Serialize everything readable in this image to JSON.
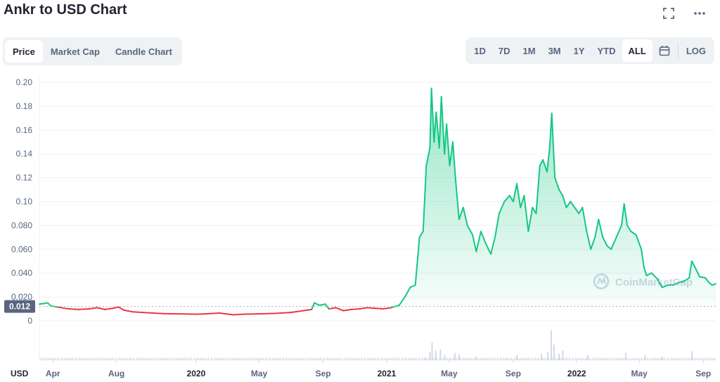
{
  "title": "Ankr to USD Chart",
  "icons": {
    "fullscreen": "fullscreen-icon",
    "more": "more-dots-icon",
    "calendar": "calendar-icon"
  },
  "tabs_left": [
    {
      "label": "Price",
      "active": true
    },
    {
      "label": "Market Cap",
      "active": false
    },
    {
      "label": "Candle Chart",
      "active": false
    }
  ],
  "tabs_right": [
    {
      "label": "1D",
      "active": false
    },
    {
      "label": "7D",
      "active": false
    },
    {
      "label": "1M",
      "active": false
    },
    {
      "label": "3M",
      "active": false
    },
    {
      "label": "1Y",
      "active": false
    },
    {
      "label": "YTD",
      "active": false
    },
    {
      "label": "ALL",
      "active": true
    }
  ],
  "log_label": "LOG",
  "currency_label": "USD",
  "watermark": "CoinMarketCap",
  "colors": {
    "up": "#16c784",
    "down": "#ea3943",
    "axis_text": "#58667e",
    "grid": "#eff2f5",
    "marker_bg": "#58667e",
    "volume": "#cfd6e4"
  },
  "chart_data": {
    "type": "line",
    "title": "Ankr to USD Chart",
    "y_ticks": [
      "0",
      "0.020",
      "0.040",
      "0.060",
      "0.080",
      "0.10",
      "0.12",
      "0.14",
      "0.16",
      "0.18",
      "0.20"
    ],
    "ylim": [
      0,
      0.2
    ],
    "x_ticks": [
      "Apr",
      "Aug",
      "2020",
      "May",
      "Sep",
      "2021",
      "May",
      "Sep",
      "2022",
      "May",
      "Sep"
    ],
    "x_tick_dates": [
      "2019-04-01",
      "2019-08-01",
      "2020-01-01",
      "2020-05-01",
      "2020-09-01",
      "2021-01-01",
      "2021-05-01",
      "2021-09-01",
      "2022-01-01",
      "2022-05-01",
      "2022-09-01"
    ],
    "xlim": [
      "2019-03-06",
      "2022-09-25"
    ],
    "reference_value": 0.012,
    "reference_label": "0.012",
    "grid": true,
    "series": [
      {
        "points": [
          [
            "2019-03-06",
            0.014
          ],
          [
            "2019-03-15",
            0.0145
          ],
          [
            "2019-03-22",
            0.015
          ],
          [
            "2019-03-28",
            0.0125
          ],
          [
            "2019-04-10",
            0.0115
          ],
          [
            "2019-05-01",
            0.01
          ],
          [
            "2019-05-20",
            0.0095
          ],
          [
            "2019-06-10",
            0.01
          ],
          [
            "2019-06-25",
            0.011
          ],
          [
            "2019-07-10",
            0.0095
          ],
          [
            "2019-07-25",
            0.0105
          ],
          [
            "2019-08-05",
            0.0115
          ],
          [
            "2019-08-15",
            0.009
          ],
          [
            "2019-09-01",
            0.0075
          ],
          [
            "2019-09-20",
            0.007
          ],
          [
            "2019-10-10",
            0.0065
          ],
          [
            "2019-11-01",
            0.006
          ],
          [
            "2019-12-01",
            0.0058
          ],
          [
            "2020-01-01",
            0.0055
          ],
          [
            "2020-01-20",
            0.0058
          ],
          [
            "2020-02-15",
            0.0065
          ],
          [
            "2020-03-13",
            0.005
          ],
          [
            "2020-04-01",
            0.0055
          ],
          [
            "2020-05-01",
            0.0058
          ],
          [
            "2020-06-01",
            0.0062
          ],
          [
            "2020-07-01",
            0.007
          ],
          [
            "2020-07-25",
            0.0085
          ],
          [
            "2020-08-10",
            0.0095
          ],
          [
            "2020-08-15",
            0.015
          ],
          [
            "2020-08-25",
            0.013
          ],
          [
            "2020-09-05",
            0.014
          ],
          [
            "2020-09-12",
            0.01
          ],
          [
            "2020-09-25",
            0.011
          ],
          [
            "2020-10-10",
            0.0085
          ],
          [
            "2020-10-25",
            0.0095
          ],
          [
            "2020-11-10",
            0.01
          ],
          [
            "2020-11-25",
            0.011
          ],
          [
            "2020-12-10",
            0.0105
          ],
          [
            "2020-12-25",
            0.01
          ],
          [
            "2021-01-10",
            0.011
          ],
          [
            "2021-01-25",
            0.013
          ],
          [
            "2021-02-05",
            0.02
          ],
          [
            "2021-02-15",
            0.028
          ],
          [
            "2021-02-25",
            0.03
          ],
          [
            "2021-03-05",
            0.07
          ],
          [
            "2021-03-12",
            0.075
          ],
          [
            "2021-03-18",
            0.13
          ],
          [
            "2021-03-25",
            0.145
          ],
          [
            "2021-03-28",
            0.195
          ],
          [
            "2021-04-02",
            0.15
          ],
          [
            "2021-04-06",
            0.175
          ],
          [
            "2021-04-12",
            0.145
          ],
          [
            "2021-04-16",
            0.188
          ],
          [
            "2021-04-22",
            0.14
          ],
          [
            "2021-04-26",
            0.165
          ],
          [
            "2021-05-02",
            0.13
          ],
          [
            "2021-05-08",
            0.15
          ],
          [
            "2021-05-13",
            0.12
          ],
          [
            "2021-05-20",
            0.085
          ],
          [
            "2021-05-28",
            0.095
          ],
          [
            "2021-06-05",
            0.08
          ],
          [
            "2021-06-15",
            0.072
          ],
          [
            "2021-06-22",
            0.058
          ],
          [
            "2021-07-01",
            0.075
          ],
          [
            "2021-07-10",
            0.065
          ],
          [
            "2021-07-20",
            0.056
          ],
          [
            "2021-07-28",
            0.07
          ],
          [
            "2021-08-05",
            0.09
          ],
          [
            "2021-08-15",
            0.1
          ],
          [
            "2021-08-25",
            0.105
          ],
          [
            "2021-09-01",
            0.1
          ],
          [
            "2021-09-08",
            0.115
          ],
          [
            "2021-09-15",
            0.095
          ],
          [
            "2021-09-22",
            0.105
          ],
          [
            "2021-09-30",
            0.075
          ],
          [
            "2021-10-08",
            0.095
          ],
          [
            "2021-10-15",
            0.09
          ],
          [
            "2021-10-22",
            0.13
          ],
          [
            "2021-10-28",
            0.135
          ],
          [
            "2021-11-05",
            0.125
          ],
          [
            "2021-11-10",
            0.145
          ],
          [
            "2021-11-14",
            0.174
          ],
          [
            "2021-11-20",
            0.12
          ],
          [
            "2021-11-28",
            0.11
          ],
          [
            "2021-12-05",
            0.105
          ],
          [
            "2021-12-12",
            0.095
          ],
          [
            "2021-12-20",
            0.1
          ],
          [
            "2021-12-28",
            0.095
          ],
          [
            "2022-01-05",
            0.09
          ],
          [
            "2022-01-12",
            0.095
          ],
          [
            "2022-01-20",
            0.075
          ],
          [
            "2022-01-28",
            0.06
          ],
          [
            "2022-02-05",
            0.07
          ],
          [
            "2022-02-12",
            0.085
          ],
          [
            "2022-02-20",
            0.07
          ],
          [
            "2022-02-28",
            0.063
          ],
          [
            "2022-03-08",
            0.06
          ],
          [
            "2022-03-18",
            0.07
          ],
          [
            "2022-03-28",
            0.08
          ],
          [
            "2022-04-02",
            0.098
          ],
          [
            "2022-04-08",
            0.08
          ],
          [
            "2022-04-15",
            0.075
          ],
          [
            "2022-04-25",
            0.072
          ],
          [
            "2022-05-05",
            0.06
          ],
          [
            "2022-05-10",
            0.045
          ],
          [
            "2022-05-15",
            0.038
          ],
          [
            "2022-05-25",
            0.04
          ],
          [
            "2022-06-05",
            0.035
          ],
          [
            "2022-06-14",
            0.028
          ],
          [
            "2022-06-25",
            0.03
          ],
          [
            "2022-07-05",
            0.03
          ],
          [
            "2022-07-15",
            0.032
          ],
          [
            "2022-07-25",
            0.033
          ],
          [
            "2022-08-05",
            0.036
          ],
          [
            "2022-08-10",
            0.05
          ],
          [
            "2022-08-16",
            0.045
          ],
          [
            "2022-08-25",
            0.037
          ],
          [
            "2022-09-05",
            0.036
          ],
          [
            "2022-09-12",
            0.032
          ],
          [
            "2022-09-18",
            0.03
          ],
          [
            "2022-09-25",
            0.031
          ]
        ]
      }
    ],
    "volume": [
      [
        "2021-03-15",
        5
      ],
      [
        "2021-03-24",
        14
      ],
      [
        "2021-03-28",
        30
      ],
      [
        "2021-04-04",
        16
      ],
      [
        "2021-04-13",
        18
      ],
      [
        "2021-04-21",
        9
      ],
      [
        "2021-05-11",
        12
      ],
      [
        "2021-05-19",
        10
      ],
      [
        "2021-06-20",
        6
      ],
      [
        "2021-09-07",
        8
      ],
      [
        "2021-10-24",
        10
      ],
      [
        "2021-11-05",
        14
      ],
      [
        "2021-11-12",
        50
      ],
      [
        "2021-11-17",
        26
      ],
      [
        "2021-11-27",
        11
      ],
      [
        "2021-12-04",
        16
      ],
      [
        "2022-01-21",
        9
      ],
      [
        "2022-04-04",
        12
      ],
      [
        "2022-05-11",
        8
      ],
      [
        "2022-06-13",
        6
      ],
      [
        "2022-08-09",
        15
      ]
    ],
    "volume_baseline_max": 4
  }
}
